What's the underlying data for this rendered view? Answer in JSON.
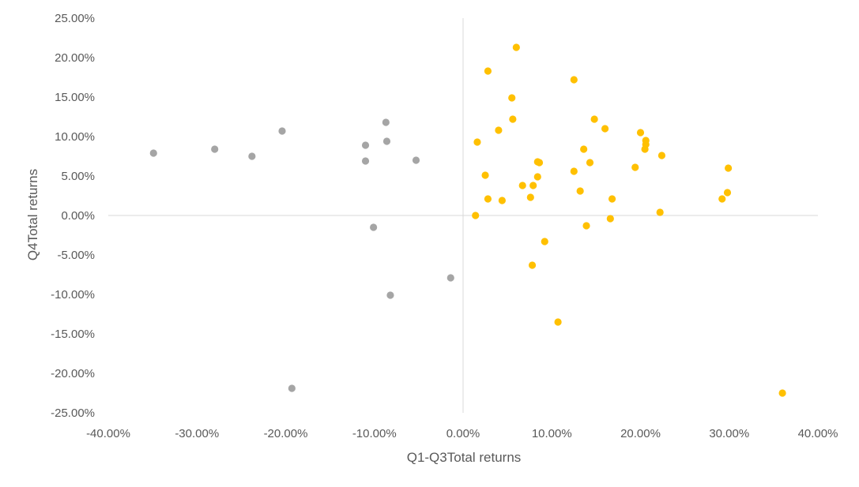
{
  "chart_data": {
    "type": "scatter",
    "xlabel": "Q1-Q3Total returns",
    "ylabel": "Q4Total returns",
    "xlim": [
      -0.4,
      0.4
    ],
    "ylim": [
      -0.25,
      0.25
    ],
    "x_ticks": [
      {
        "value": -0.4,
        "label": "-40.00%"
      },
      {
        "value": -0.3,
        "label": "-30.00%"
      },
      {
        "value": -0.2,
        "label": "-20.00%"
      },
      {
        "value": -0.1,
        "label": "-10.00%"
      },
      {
        "value": 0.0,
        "label": "0.00%"
      },
      {
        "value": 0.1,
        "label": "10.00%"
      },
      {
        "value": 0.2,
        "label": "20.00%"
      },
      {
        "value": 0.3,
        "label": "30.00%"
      },
      {
        "value": 0.4,
        "label": "40.00%"
      }
    ],
    "y_ticks": [
      {
        "value": 0.25,
        "label": "25.00%"
      },
      {
        "value": 0.2,
        "label": "20.00%"
      },
      {
        "value": 0.15,
        "label": "15.00%"
      },
      {
        "value": 0.1,
        "label": "10.00%"
      },
      {
        "value": 0.05,
        "label": "5.00%"
      },
      {
        "value": 0.0,
        "label": "0.00%"
      },
      {
        "value": -0.05,
        "label": "-5.00%"
      },
      {
        "value": -0.1,
        "label": "-10.00%"
      },
      {
        "value": -0.15,
        "label": "-15.00%"
      },
      {
        "value": -0.2,
        "label": "-20.00%"
      },
      {
        "value": -0.25,
        "label": "-25.00%"
      }
    ],
    "grid": false,
    "legend": "none",
    "series": [
      {
        "color": "#a5a5a5",
        "points": [
          [
            -0.349,
            0.079
          ],
          [
            -0.28,
            0.084
          ],
          [
            -0.238,
            0.075
          ],
          [
            -0.204,
            0.107
          ],
          [
            -0.11,
            0.089
          ],
          [
            -0.11,
            0.069
          ],
          [
            -0.087,
            0.118
          ],
          [
            -0.086,
            0.094
          ],
          [
            -0.053,
            0.07
          ],
          [
            -0.101,
            -0.015
          ],
          [
            -0.082,
            -0.101
          ],
          [
            -0.014,
            -0.079
          ],
          [
            -0.193,
            -0.219
          ]
        ]
      },
      {
        "color": "#ffc000",
        "points": [
          [
            0.06,
            0.213
          ],
          [
            0.028,
            0.183
          ],
          [
            0.125,
            0.172
          ],
          [
            0.055,
            0.149
          ],
          [
            0.056,
            0.122
          ],
          [
            0.148,
            0.122
          ],
          [
            0.04,
            0.108
          ],
          [
            0.16,
            0.11
          ],
          [
            0.016,
            0.093
          ],
          [
            0.2,
            0.105
          ],
          [
            0.206,
            0.095
          ],
          [
            0.206,
            0.09
          ],
          [
            0.136,
            0.084
          ],
          [
            0.205,
            0.084
          ],
          [
            0.224,
            0.076
          ],
          [
            0.084,
            0.068
          ],
          [
            0.086,
            0.067
          ],
          [
            0.143,
            0.067
          ],
          [
            0.194,
            0.061
          ],
          [
            0.299,
            0.06
          ],
          [
            0.125,
            0.056
          ],
          [
            0.025,
            0.051
          ],
          [
            0.084,
            0.049
          ],
          [
            0.067,
            0.038
          ],
          [
            0.079,
            0.038
          ],
          [
            0.132,
            0.031
          ],
          [
            0.298,
            0.029
          ],
          [
            0.076,
            0.023
          ],
          [
            0.028,
            0.021
          ],
          [
            0.044,
            0.019
          ],
          [
            0.168,
            0.021
          ],
          [
            0.292,
            0.021
          ],
          [
            0.014,
            0.0
          ],
          [
            0.222,
            0.004
          ],
          [
            0.166,
            -0.004
          ],
          [
            0.139,
            -0.013
          ],
          [
            0.092,
            -0.033
          ],
          [
            0.078,
            -0.063
          ],
          [
            0.107,
            -0.135
          ],
          [
            0.36,
            -0.225
          ]
        ]
      }
    ]
  }
}
